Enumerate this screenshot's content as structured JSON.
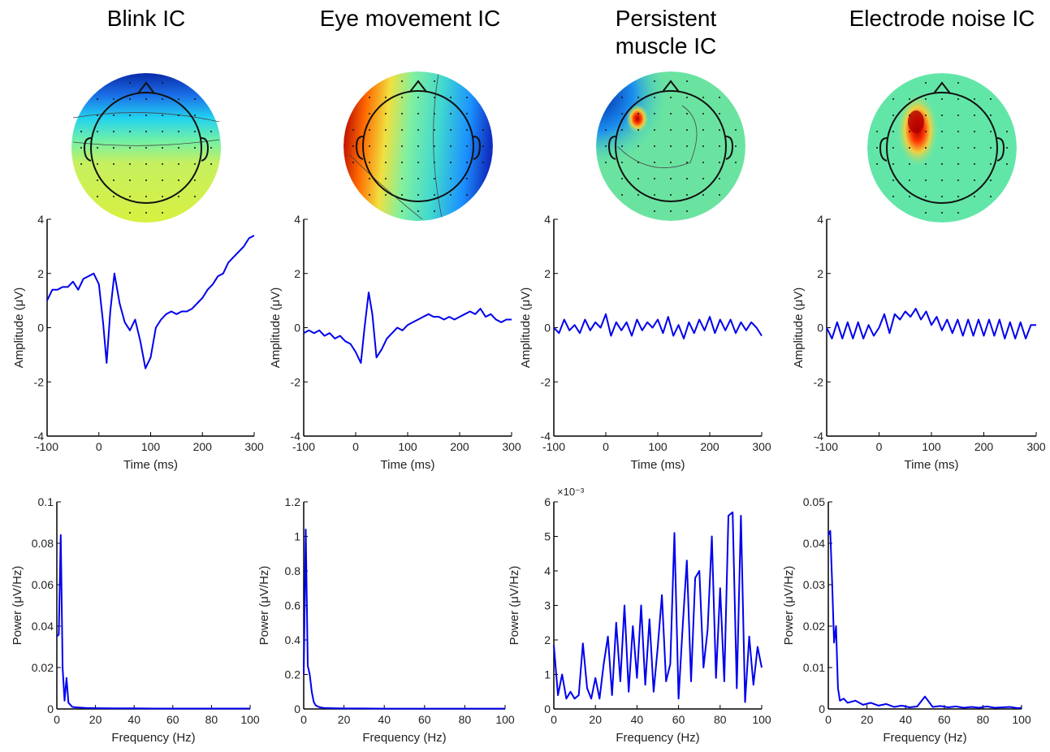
{
  "chart_data": [
    {
      "type": "line",
      "title": "Blink IC",
      "xlabel": "Time (ms)",
      "ylabel": "Amplitude (μV)",
      "color": "#0000ee",
      "x": [
        -100,
        -90,
        -80,
        -70,
        -60,
        -50,
        -40,
        -30,
        -20,
        -10,
        0,
        8,
        15,
        22,
        30,
        40,
        50,
        60,
        70,
        80,
        90,
        100,
        110,
        120,
        130,
        140,
        150,
        160,
        170,
        180,
        190,
        200,
        210,
        220,
        230,
        240,
        250,
        260,
        270,
        280,
        290,
        300
      ],
      "values": [
        1.0,
        1.4,
        1.4,
        1.5,
        1.5,
        1.7,
        1.4,
        1.8,
        1.9,
        2.0,
        1.6,
        0.2,
        -1.3,
        0.6,
        2.0,
        0.9,
        0.2,
        -0.1,
        0.3,
        -0.5,
        -1.5,
        -1.1,
        0.0,
        0.3,
        0.5,
        0.6,
        0.5,
        0.6,
        0.6,
        0.7,
        0.9,
        1.1,
        1.4,
        1.6,
        1.9,
        2.0,
        2.4,
        2.6,
        2.8,
        3.0,
        3.3,
        3.4
      ],
      "xlim": [
        -100,
        300
      ],
      "xticks": [
        -100,
        0,
        100,
        200,
        300
      ],
      "ylim": [
        -4,
        4
      ],
      "yticks": [
        -4,
        -2,
        0,
        2,
        4
      ]
    },
    {
      "type": "line",
      "title": "Eye movement IC",
      "xlabel": "Time (ms)",
      "ylabel": "Amplitude (μV)",
      "color": "#0000ee",
      "x": [
        -100,
        -90,
        -80,
        -70,
        -60,
        -50,
        -40,
        -30,
        -20,
        -10,
        0,
        10,
        17,
        25,
        32,
        40,
        50,
        60,
        70,
        80,
        90,
        100,
        110,
        120,
        130,
        140,
        150,
        160,
        170,
        180,
        190,
        200,
        210,
        220,
        230,
        240,
        250,
        260,
        270,
        280,
        290,
        300
      ],
      "values": [
        -0.2,
        -0.1,
        -0.2,
        -0.1,
        -0.3,
        -0.2,
        -0.4,
        -0.3,
        -0.5,
        -0.6,
        -0.9,
        -1.3,
        0.0,
        1.3,
        0.5,
        -1.1,
        -0.8,
        -0.4,
        -0.2,
        0.0,
        -0.1,
        0.1,
        0.2,
        0.3,
        0.4,
        0.5,
        0.4,
        0.4,
        0.3,
        0.4,
        0.3,
        0.4,
        0.5,
        0.6,
        0.5,
        0.7,
        0.4,
        0.5,
        0.3,
        0.2,
        0.3,
        0.3
      ],
      "xlim": [
        -100,
        300
      ],
      "xticks": [
        -100,
        0,
        100,
        200,
        300
      ],
      "ylim": [
        -4,
        4
      ],
      "yticks": [
        -4,
        -2,
        0,
        2,
        4
      ]
    },
    {
      "type": "line",
      "title": "Persistent muscle IC",
      "xlabel": "Time (ms)",
      "ylabel": "Amplitude (μV)",
      "color": "#0000ee",
      "x": [
        -100,
        -90,
        -80,
        -70,
        -60,
        -50,
        -40,
        -30,
        -20,
        -10,
        0,
        10,
        20,
        30,
        40,
        50,
        60,
        70,
        80,
        90,
        100,
        110,
        120,
        130,
        140,
        150,
        160,
        170,
        180,
        190,
        200,
        210,
        220,
        230,
        240,
        250,
        260,
        270,
        280,
        290,
        300
      ],
      "values": [
        0.0,
        -0.2,
        0.3,
        -0.1,
        0.1,
        -0.2,
        0.3,
        -0.1,
        0.2,
        0.0,
        0.5,
        -0.3,
        0.2,
        -0.1,
        0.2,
        -0.3,
        0.3,
        -0.1,
        0.2,
        0.0,
        0.3,
        -0.2,
        0.4,
        -0.3,
        0.1,
        -0.4,
        0.2,
        -0.2,
        0.3,
        -0.1,
        0.4,
        -0.2,
        0.3,
        -0.1,
        0.3,
        -0.2,
        0.2,
        -0.1,
        0.2,
        0.0,
        -0.3
      ],
      "xlim": [
        -100,
        300
      ],
      "xticks": [
        -100,
        0,
        100,
        200,
        300
      ],
      "ylim": [
        -4,
        4
      ],
      "yticks": [
        -4,
        -2,
        0,
        2,
        4
      ]
    },
    {
      "type": "line",
      "title": "Electrode noise IC",
      "xlabel": "Time (ms)",
      "ylabel": "Amplitude (μV)",
      "color": "#0000ee",
      "x": [
        -100,
        -90,
        -80,
        -70,
        -60,
        -50,
        -40,
        -30,
        -20,
        -10,
        0,
        10,
        20,
        30,
        40,
        50,
        60,
        70,
        80,
        90,
        100,
        110,
        120,
        130,
        140,
        150,
        160,
        170,
        180,
        190,
        200,
        210,
        220,
        230,
        240,
        250,
        260,
        270,
        280,
        290,
        300
      ],
      "values": [
        0.0,
        -0.4,
        0.2,
        -0.4,
        0.2,
        -0.4,
        0.2,
        -0.4,
        0.1,
        -0.3,
        0.0,
        0.5,
        -0.2,
        0.5,
        0.3,
        0.6,
        0.4,
        0.7,
        0.3,
        0.6,
        0.1,
        0.4,
        -0.1,
        0.3,
        -0.2,
        0.3,
        -0.3,
        0.3,
        -0.3,
        0.3,
        -0.3,
        0.3,
        -0.3,
        0.3,
        -0.4,
        0.2,
        -0.4,
        0.2,
        -0.4,
        0.1,
        0.1
      ],
      "xlim": [
        -100,
        300
      ],
      "xticks": [
        -100,
        0,
        100,
        200,
        300
      ],
      "ylim": [
        -4,
        4
      ],
      "yticks": [
        -4,
        -2,
        0,
        2,
        4
      ]
    },
    {
      "type": "line",
      "xlabel": "Frequency (Hz)",
      "ylabel": "Power (μV/Hz)",
      "color": "#0000ee",
      "x": [
        0,
        1,
        2,
        3,
        4,
        5,
        6,
        7,
        8,
        10,
        15,
        20,
        30,
        40,
        50,
        60,
        70,
        80,
        90,
        100
      ],
      "values": [
        0.035,
        0.036,
        0.084,
        0.02,
        0.004,
        0.015,
        0.003,
        0.002,
        0.001,
        0.0008,
        0.0005,
        0.0004,
        0.0003,
        0.0003,
        0.0002,
        0.0002,
        0.0002,
        0.0002,
        0.0002,
        0.0002
      ],
      "xlim": [
        0,
        100
      ],
      "xticks": [
        0,
        20,
        40,
        60,
        80,
        100
      ],
      "ylim": [
        0,
        0.1
      ],
      "yticks": [
        0,
        0.02,
        0.04,
        0.06,
        0.08,
        0.1
      ]
    },
    {
      "type": "line",
      "xlabel": "Frequency (Hz)",
      "ylabel": "Power (μV/Hz)",
      "color": "#0000ee",
      "x": [
        0,
        1,
        2,
        3,
        4,
        5,
        6,
        8,
        10,
        15,
        20,
        30,
        40,
        50,
        60,
        70,
        80,
        90,
        100
      ],
      "values": [
        0.2,
        1.04,
        0.25,
        0.2,
        0.1,
        0.04,
        0.02,
        0.01,
        0.006,
        0.004,
        0.003,
        0.003,
        0.002,
        0.002,
        0.002,
        0.002,
        0.002,
        0.002,
        0.002
      ],
      "xlim": [
        0,
        100
      ],
      "xticks": [
        0,
        20,
        40,
        60,
        80,
        100
      ],
      "ylim": [
        0,
        1.2
      ],
      "yticks": [
        0,
        0.2,
        0.4,
        0.6,
        0.8,
        1,
        1.2
      ]
    },
    {
      "type": "line",
      "xlabel": "Frequency (Hz)",
      "ylabel": "Power (μV/Hz)",
      "y_multiplier": "×10⁻³",
      "color": "#0000ee",
      "x": [
        0,
        2,
        4,
        6,
        8,
        10,
        12,
        14,
        16,
        18,
        20,
        22,
        24,
        26,
        28,
        30,
        32,
        34,
        36,
        38,
        40,
        42,
        44,
        46,
        48,
        50,
        52,
        54,
        56,
        58,
        60,
        62,
        64,
        66,
        68,
        70,
        72,
        74,
        76,
        78,
        80,
        82,
        84,
        86,
        88,
        90,
        92,
        94,
        96,
        98,
        100
      ],
      "values": [
        1.85,
        0.4,
        1.0,
        0.3,
        0.5,
        0.3,
        0.4,
        1.9,
        0.6,
        0.3,
        0.9,
        0.3,
        1.3,
        2.1,
        0.4,
        2.5,
        0.8,
        3.0,
        0.5,
        2.4,
        0.9,
        3.0,
        0.7,
        2.6,
        0.5,
        1.8,
        3.3,
        0.8,
        1.3,
        5.1,
        0.3,
        2.4,
        4.3,
        0.8,
        3.8,
        4.0,
        1.2,
        2.3,
        5.0,
        0.9,
        3.5,
        0.8,
        5.6,
        5.7,
        0.6,
        5.6,
        0.2,
        2.1,
        0.7,
        1.8,
        1.2
      ],
      "xlim": [
        0,
        100
      ],
      "xticks": [
        0,
        20,
        40,
        60,
        80,
        100
      ],
      "ylim": [
        0,
        6
      ],
      "yticks": [
        0,
        1,
        2,
        3,
        4,
        5,
        6
      ]
    },
    {
      "type": "line",
      "xlabel": "Frequency (Hz)",
      "ylabel": "Power (μV/Hz)",
      "color": "#0000ee",
      "x": [
        0,
        1,
        2,
        3,
        4,
        5,
        6,
        8,
        10,
        14,
        18,
        22,
        26,
        30,
        34,
        38,
        42,
        46,
        50,
        54,
        58,
        62,
        66,
        70,
        74,
        78,
        82,
        86,
        90,
        94,
        98,
        100
      ],
      "values": [
        0.042,
        0.043,
        0.03,
        0.016,
        0.02,
        0.005,
        0.002,
        0.0025,
        0.0015,
        0.002,
        0.001,
        0.0015,
        0.0008,
        0.0012,
        0.0005,
        0.0008,
        0.0004,
        0.0006,
        0.003,
        0.0005,
        0.0007,
        0.0004,
        0.0006,
        0.0003,
        0.0005,
        0.0003,
        0.0006,
        0.0003,
        0.0004,
        0.0005,
        0.0002,
        0.0003
      ],
      "xlim": [
        0,
        100
      ],
      "xticks": [
        0,
        20,
        40,
        60,
        80,
        100
      ],
      "ylim": [
        0,
        0.05
      ],
      "yticks": [
        0,
        0.01,
        0.02,
        0.03,
        0.04,
        0.05
      ]
    }
  ]
}
